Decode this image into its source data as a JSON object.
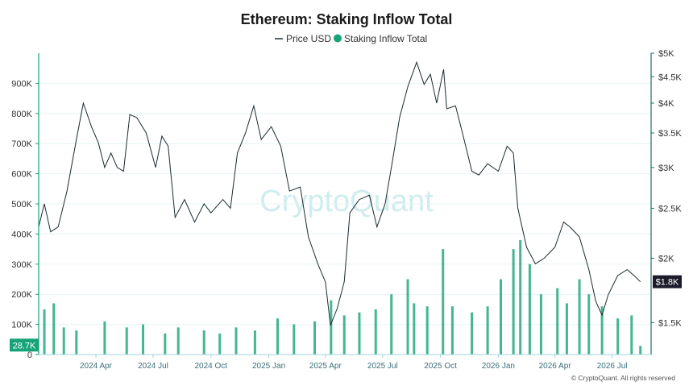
{
  "chart_data": {
    "type": "line+bar",
    "title": "Ethereum: Staking Inflow Total",
    "legend": {
      "placement": "top-center",
      "entries": [
        {
          "marker": "line",
          "label": "Price USD",
          "color": "#1b2b2f"
        },
        {
          "marker": "dot",
          "label": "Staking Inflow Total",
          "color": "#16a378"
        }
      ]
    },
    "x_axis": {
      "start": "2024-01-01",
      "end": "2026-09-01",
      "ticks": [
        {
          "date": "2024-04-01",
          "label": "2024 Apr"
        },
        {
          "date": "2024-07-01",
          "label": "2024 Jul"
        },
        {
          "date": "2024-10-01",
          "label": "2024 Oct"
        },
        {
          "date": "2025-01-01",
          "label": "2025 Jan"
        },
        {
          "date": "2025-04-01",
          "label": "2025 Apr"
        },
        {
          "date": "2025-07-01",
          "label": "2025 Jul"
        },
        {
          "date": "2025-10-01",
          "label": "2025 Oct"
        },
        {
          "date": "2026-01-01",
          "label": "2026 Jan"
        },
        {
          "date": "2026-04-01",
          "label": "2026 Apr"
        },
        {
          "date": "2026-07-01",
          "label": "2026 Jul"
        }
      ]
    },
    "y_left": {
      "min": 0,
      "max": 1000000,
      "ticks": [
        {
          "value": 0,
          "label": "0"
        },
        {
          "value": 100000,
          "label": "100K"
        },
        {
          "value": 200000,
          "label": "200K"
        },
        {
          "value": 300000,
          "label": "300K"
        },
        {
          "value": 400000,
          "label": "400K"
        },
        {
          "value": 500000,
          "label": "500K"
        },
        {
          "value": 600000,
          "label": "600K"
        },
        {
          "value": 700000,
          "label": "700K"
        },
        {
          "value": 800000,
          "label": "800K"
        },
        {
          "value": 900000,
          "label": "900K"
        }
      ]
    },
    "y_right": {
      "scale": "log",
      "min": 1300,
      "max": 5000,
      "ticks": [
        {
          "value": 1500,
          "label": "$1.5K"
        },
        {
          "value": 2000,
          "label": "$2K"
        },
        {
          "value": 2500,
          "label": "$2.5K"
        },
        {
          "value": 3000,
          "label": "$3K"
        },
        {
          "value": 3500,
          "label": "$3.5K"
        },
        {
          "value": 4000,
          "label": "$4K"
        },
        {
          "value": 4500,
          "label": "$4.5K"
        },
        {
          "value": 5000,
          "label": "$5K"
        }
      ]
    },
    "grid": true,
    "series": [
      {
        "name": "Price USD",
        "kind": "line",
        "axis": "right",
        "color": "#1b2b2f",
        "points": [
          [
            "2024-01-01",
            2300
          ],
          [
            "2024-01-10",
            2550
          ],
          [
            "2024-01-20",
            2250
          ],
          [
            "2024-02-01",
            2300
          ],
          [
            "2024-02-15",
            2700
          ],
          [
            "2024-03-01",
            3400
          ],
          [
            "2024-03-12",
            4000
          ],
          [
            "2024-03-25",
            3600
          ],
          [
            "2024-04-05",
            3350
          ],
          [
            "2024-04-15",
            3000
          ],
          [
            "2024-04-25",
            3200
          ],
          [
            "2024-05-05",
            3000
          ],
          [
            "2024-05-15",
            2950
          ],
          [
            "2024-05-25",
            3800
          ],
          [
            "2024-06-05",
            3750
          ],
          [
            "2024-06-20",
            3500
          ],
          [
            "2024-07-05",
            3000
          ],
          [
            "2024-07-15",
            3450
          ],
          [
            "2024-07-25",
            3300
          ],
          [
            "2024-08-05",
            2400
          ],
          [
            "2024-08-20",
            2600
          ],
          [
            "2024-09-05",
            2350
          ],
          [
            "2024-09-20",
            2550
          ],
          [
            "2024-10-01",
            2450
          ],
          [
            "2024-10-20",
            2600
          ],
          [
            "2024-11-01",
            2500
          ],
          [
            "2024-11-12",
            3200
          ],
          [
            "2024-11-25",
            3500
          ],
          [
            "2024-12-08",
            3950
          ],
          [
            "2024-12-20",
            3400
          ],
          [
            "2025-01-05",
            3600
          ],
          [
            "2025-01-20",
            3300
          ],
          [
            "2025-02-03",
            2700
          ],
          [
            "2025-02-20",
            2750
          ],
          [
            "2025-03-05",
            2200
          ],
          [
            "2025-03-20",
            1950
          ],
          [
            "2025-04-01",
            1800
          ],
          [
            "2025-04-09",
            1480
          ],
          [
            "2025-04-20",
            1600
          ],
          [
            "2025-05-01",
            1800
          ],
          [
            "2025-05-10",
            2450
          ],
          [
            "2025-05-25",
            2600
          ],
          [
            "2025-06-10",
            2650
          ],
          [
            "2025-06-22",
            2300
          ],
          [
            "2025-07-05",
            2550
          ],
          [
            "2025-07-15",
            3000
          ],
          [
            "2025-07-28",
            3750
          ],
          [
            "2025-08-10",
            4300
          ],
          [
            "2025-08-24",
            4800
          ],
          [
            "2025-09-05",
            4350
          ],
          [
            "2025-09-15",
            4550
          ],
          [
            "2025-09-25",
            4000
          ],
          [
            "2025-10-06",
            4650
          ],
          [
            "2025-10-11",
            3900
          ],
          [
            "2025-10-25",
            3950
          ],
          [
            "2025-11-05",
            3500
          ],
          [
            "2025-11-20",
            2950
          ],
          [
            "2025-12-01",
            2900
          ],
          [
            "2025-12-15",
            3050
          ],
          [
            "2026-01-01",
            2950
          ],
          [
            "2026-01-15",
            3300
          ],
          [
            "2026-01-25",
            3200
          ],
          [
            "2026-02-01",
            2500
          ],
          [
            "2026-02-15",
            2100
          ],
          [
            "2026-03-01",
            1950
          ],
          [
            "2026-03-15",
            2000
          ],
          [
            "2026-04-01",
            2100
          ],
          [
            "2026-04-15",
            2350
          ],
          [
            "2026-04-25",
            2300
          ],
          [
            "2026-05-10",
            2200
          ],
          [
            "2026-05-25",
            1900
          ],
          [
            "2026-06-05",
            1650
          ],
          [
            "2026-06-15",
            1550
          ],
          [
            "2026-06-25",
            1700
          ],
          [
            "2026-07-10",
            1850
          ],
          [
            "2026-07-25",
            1900
          ],
          [
            "2026-08-05",
            1850
          ],
          [
            "2026-08-15",
            1800
          ]
        ]
      },
      {
        "name": "Staking Inflow Total",
        "kind": "bar",
        "axis": "left",
        "color": "#16a378",
        "points": [
          [
            "2024-01-10",
            150000
          ],
          [
            "2024-01-25",
            170000
          ],
          [
            "2024-02-10",
            90000
          ],
          [
            "2024-03-01",
            80000
          ],
          [
            "2024-04-15",
            110000
          ],
          [
            "2024-05-20",
            90000
          ],
          [
            "2024-06-15",
            100000
          ],
          [
            "2024-07-20",
            70000
          ],
          [
            "2024-08-10",
            90000
          ],
          [
            "2024-09-20",
            80000
          ],
          [
            "2024-10-15",
            70000
          ],
          [
            "2024-11-10",
            90000
          ],
          [
            "2024-12-10",
            80000
          ],
          [
            "2025-01-15",
            120000
          ],
          [
            "2025-02-10",
            100000
          ],
          [
            "2025-03-15",
            110000
          ],
          [
            "2025-04-10",
            180000
          ],
          [
            "2025-05-01",
            130000
          ],
          [
            "2025-05-25",
            140000
          ],
          [
            "2025-06-20",
            150000
          ],
          [
            "2025-07-15",
            200000
          ],
          [
            "2025-08-10",
            250000
          ],
          [
            "2025-08-20",
            170000
          ],
          [
            "2025-09-10",
            160000
          ],
          [
            "2025-10-05",
            350000
          ],
          [
            "2025-10-20",
            160000
          ],
          [
            "2025-11-20",
            140000
          ],
          [
            "2025-12-15",
            160000
          ],
          [
            "2026-01-05",
            250000
          ],
          [
            "2026-01-25",
            350000
          ],
          [
            "2026-02-05",
            380000
          ],
          [
            "2026-02-20",
            300000
          ],
          [
            "2026-03-10",
            200000
          ],
          [
            "2026-04-05",
            220000
          ],
          [
            "2026-04-20",
            170000
          ],
          [
            "2026-05-10",
            250000
          ],
          [
            "2026-05-25",
            200000
          ],
          [
            "2026-06-15",
            160000
          ],
          [
            "2026-07-10",
            120000
          ],
          [
            "2026-08-01",
            130000
          ],
          [
            "2026-08-15",
            28700
          ]
        ]
      }
    ],
    "annotations": [
      {
        "axis": "left",
        "value": 28700,
        "label": "28.7K",
        "color": "#16a378"
      },
      {
        "axis": "right",
        "value": 1800,
        "label": "$1.8K",
        "color": "#1b1b2b"
      }
    ],
    "watermark": "CryptoQuant",
    "copyright": "© CryptoQuant. All rights reserved"
  }
}
